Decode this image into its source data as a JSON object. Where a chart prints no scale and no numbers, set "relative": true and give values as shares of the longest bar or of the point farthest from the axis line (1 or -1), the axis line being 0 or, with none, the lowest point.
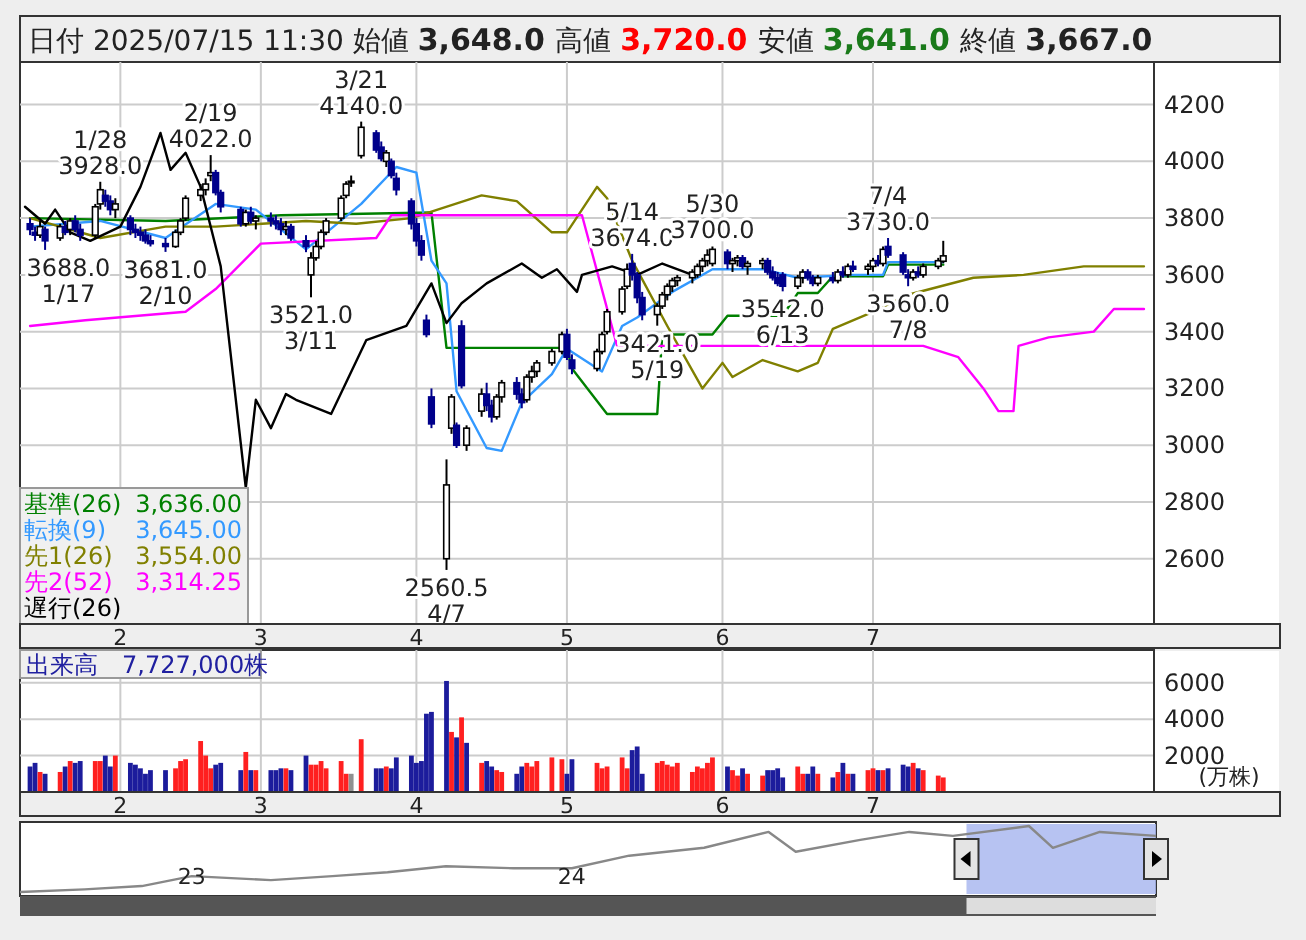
{
  "chart_data": [
    {
      "type": "candlestick",
      "title": "日付 2025/07/15 11:30 始値 3,648.0 高値 3,720.0 安値 3,641.0 終値 3,667.0",
      "x": [
        "2025-01-14",
        "2025-01-15",
        "2025-01-16",
        "2025-01-17",
        "2025-01-20",
        "2025-01-21",
        "2025-01-22",
        "2025-01-23",
        "2025-01-24",
        "2025-01-27",
        "2025-01-28",
        "2025-01-29",
        "2025-01-30",
        "2025-01-31",
        "2025-02-03",
        "2025-02-04",
        "2025-02-05",
        "2025-02-06",
        "2025-02-07",
        "2025-02-10",
        "2025-02-12",
        "2025-02-13",
        "2025-02-14",
        "2025-02-17",
        "2025-02-18",
        "2025-02-19",
        "2025-02-20",
        "2025-02-21",
        "2025-02-25",
        "2025-02-26",
        "2025-02-27",
        "2025-02-28",
        "2025-03-03",
        "2025-03-04",
        "2025-03-05",
        "2025-03-06",
        "2025-03-07",
        "2025-03-10",
        "2025-03-11",
        "2025-03-12",
        "2025-03-13",
        "2025-03-14",
        "2025-03-17",
        "2025-03-18",
        "2025-03-19",
        "2025-03-21",
        "2025-03-24",
        "2025-03-25",
        "2025-03-26",
        "2025-03-27",
        "2025-03-28",
        "2025-03-31",
        "2025-04-01",
        "2025-04-02",
        "2025-04-03",
        "2025-04-04",
        "2025-04-07",
        "2025-04-08",
        "2025-04-09",
        "2025-04-10",
        "2025-04-11",
        "2025-04-14",
        "2025-04-15",
        "2025-04-16",
        "2025-04-17",
        "2025-04-18",
        "2025-04-21",
        "2025-04-22",
        "2025-04-23",
        "2025-04-24",
        "2025-04-25",
        "2025-04-28",
        "2025-04-30",
        "2025-05-01",
        "2025-05-02",
        "2025-05-07",
        "2025-05-08",
        "2025-05-09",
        "2025-05-12",
        "2025-05-13",
        "2025-05-14",
        "2025-05-15",
        "2025-05-16",
        "2025-05-19",
        "2025-05-20",
        "2025-05-21",
        "2025-05-22",
        "2025-05-23",
        "2025-05-26",
        "2025-05-27",
        "2025-05-28",
        "2025-05-29",
        "2025-05-30",
        "2025-06-02",
        "2025-06-03",
        "2025-06-04",
        "2025-06-05",
        "2025-06-06",
        "2025-06-09",
        "2025-06-10",
        "2025-06-11",
        "2025-06-12",
        "2025-06-13",
        "2025-06-16",
        "2025-06-17",
        "2025-06-18",
        "2025-06-19",
        "2025-06-20",
        "2025-06-23",
        "2025-06-24",
        "2025-06-25",
        "2025-06-26",
        "2025-06-27",
        "2025-06-30",
        "2025-07-01",
        "2025-07-02",
        "2025-07-03",
        "2025-07-04",
        "2025-07-07",
        "2025-07-08",
        "2025-07-09",
        "2025-07-10",
        "2025-07-11",
        "2025-07-14",
        "2025-07-15"
      ],
      "ohlc": [
        [
          3780,
          3800,
          3740,
          3760
        ],
        [
          3750,
          3770,
          3720,
          3740
        ],
        [
          3740,
          3790,
          3730,
          3770
        ],
        [
          3760,
          3770,
          3688,
          3720
        ],
        [
          3730,
          3780,
          3720,
          3770
        ],
        [
          3770,
          3790,
          3740,
          3750
        ],
        [
          3760,
          3800,
          3740,
          3790
        ],
        [
          3790,
          3810,
          3750,
          3760
        ],
        [
          3760,
          3780,
          3720,
          3740
        ],
        [
          3740,
          3850,
          3730,
          3840
        ],
        [
          3850,
          3928,
          3830,
          3900
        ],
        [
          3880,
          3900,
          3840,
          3860
        ],
        [
          3860,
          3880,
          3810,
          3830
        ],
        [
          3830,
          3870,
          3800,
          3850
        ],
        [
          3800,
          3810,
          3740,
          3760
        ],
        [
          3760,
          3780,
          3730,
          3750
        ],
        [
          3750,
          3770,
          3720,
          3740
        ],
        [
          3740,
          3760,
          3710,
          3720
        ],
        [
          3720,
          3740,
          3700,
          3710
        ],
        [
          3710,
          3730,
          3681,
          3700
        ],
        [
          3700,
          3760,
          3695,
          3750
        ],
        [
          3750,
          3800,
          3740,
          3790
        ],
        [
          3800,
          3880,
          3790,
          3870
        ],
        [
          3880,
          3920,
          3860,
          3900
        ],
        [
          3900,
          3940,
          3880,
          3920
        ],
        [
          3950,
          4022,
          3930,
          3960
        ],
        [
          3960,
          3970,
          3880,
          3890
        ],
        [
          3890,
          3900,
          3820,
          3840
        ],
        [
          3830,
          3840,
          3770,
          3780
        ],
        [
          3780,
          3830,
          3770,
          3820
        ],
        [
          3820,
          3840,
          3780,
          3790
        ],
        [
          3790,
          3810,
          3760,
          3800
        ],
        [
          3800,
          3820,
          3770,
          3790
        ],
        [
          3790,
          3810,
          3760,
          3780
        ],
        [
          3780,
          3800,
          3740,
          3760
        ],
        [
          3760,
          3790,
          3740,
          3770
        ],
        [
          3770,
          3780,
          3720,
          3730
        ],
        [
          3720,
          3740,
          3680,
          3700
        ],
        [
          3600,
          3680,
          3521,
          3660
        ],
        [
          3660,
          3720,
          3650,
          3700
        ],
        [
          3700,
          3760,
          3690,
          3750
        ],
        [
          3750,
          3800,
          3740,
          3790
        ],
        [
          3800,
          3880,
          3790,
          3870
        ],
        [
          3880,
          3930,
          3870,
          3920
        ],
        [
          3930,
          3950,
          3910,
          3930
        ],
        [
          4020,
          4140,
          4010,
          4120
        ],
        [
          4100,
          4110,
          4030,
          4040
        ],
        [
          4050,
          4070,
          4000,
          4010
        ],
        [
          4000,
          4040,
          3980,
          4030
        ],
        [
          4000,
          4010,
          3940,
          3950
        ],
        [
          3940,
          3960,
          3880,
          3900
        ],
        [
          3860,
          3870,
          3760,
          3780
        ],
        [
          3780,
          3800,
          3700,
          3720
        ],
        [
          3720,
          3740,
          3650,
          3670
        ],
        [
          3440,
          3460,
          3380,
          3390
        ],
        [
          3170,
          3200,
          3060,
          3075
        ],
        [
          2600,
          2950,
          2560.5,
          2860
        ],
        [
          3060,
          3180,
          3040,
          3170
        ],
        [
          3070,
          3080,
          2990,
          3000
        ],
        [
          3420,
          3440,
          3200,
          3210
        ],
        [
          3000,
          3070,
          2980,
          3060
        ],
        [
          3120,
          3200,
          3100,
          3180
        ],
        [
          3180,
          3220,
          3120,
          3140
        ],
        [
          3140,
          3160,
          3080,
          3100
        ],
        [
          3100,
          3180,
          3090,
          3170
        ],
        [
          3170,
          3230,
          3150,
          3220
        ],
        [
          3220,
          3240,
          3160,
          3180
        ],
        [
          3180,
          3200,
          3130,
          3150
        ],
        [
          3160,
          3250,
          3150,
          3240
        ],
        [
          3240,
          3280,
          3220,
          3260
        ],
        [
          3260,
          3300,
          3240,
          3290
        ],
        [
          3290,
          3340,
          3280,
          3330
        ],
        [
          3330,
          3400,
          3320,
          3390
        ],
        [
          3390,
          3410,
          3300,
          3310
        ],
        [
          3300,
          3320,
          3250,
          3270
        ],
        [
          3270,
          3340,
          3260,
          3330
        ],
        [
          3330,
          3400,
          3320,
          3390
        ],
        [
          3400,
          3480,
          3390,
          3470
        ],
        [
          3470,
          3560,
          3460,
          3550
        ],
        [
          3560,
          3640,
          3550,
          3620
        ],
        [
          3640,
          3674,
          3580,
          3600
        ],
        [
          3600,
          3610,
          3500,
          3520
        ],
        [
          3520,
          3540,
          3440,
          3460
        ],
        [
          3460,
          3500,
          3421,
          3490
        ],
        [
          3490,
          3540,
          3480,
          3530
        ],
        [
          3530,
          3570,
          3510,
          3560
        ],
        [
          3560,
          3590,
          3540,
          3580
        ],
        [
          3580,
          3600,
          3560,
          3590
        ],
        [
          3590,
          3620,
          3570,
          3610
        ],
        [
          3600,
          3640,
          3590,
          3630
        ],
        [
          3630,
          3660,
          3610,
          3650
        ],
        [
          3650,
          3690,
          3630,
          3670
        ],
        [
          3640,
          3700,
          3630,
          3690
        ],
        [
          3680,
          3690,
          3620,
          3640
        ],
        [
          3640,
          3660,
          3610,
          3650
        ],
        [
          3650,
          3670,
          3630,
          3660
        ],
        [
          3660,
          3670,
          3620,
          3630
        ],
        [
          3630,
          3650,
          3600,
          3640
        ],
        [
          3640,
          3660,
          3620,
          3650
        ],
        [
          3650,
          3660,
          3600,
          3610
        ],
        [
          3610,
          3630,
          3580,
          3590
        ],
        [
          3590,
          3610,
          3560,
          3570
        ],
        [
          3600,
          3610,
          3542,
          3560
        ],
        [
          3560,
          3600,
          3550,
          3590
        ],
        [
          3590,
          3620,
          3570,
          3610
        ],
        [
          3610,
          3620,
          3580,
          3590
        ],
        [
          3590,
          3600,
          3560,
          3570
        ],
        [
          3570,
          3600,
          3560,
          3590
        ],
        [
          3590,
          3610,
          3570,
          3580
        ],
        [
          3580,
          3620,
          3570,
          3610
        ],
        [
          3610,
          3630,
          3590,
          3600
        ],
        [
          3600,
          3640,
          3590,
          3630
        ],
        [
          3630,
          3650,
          3610,
          3620
        ],
        [
          3620,
          3640,
          3600,
          3630
        ],
        [
          3630,
          3660,
          3610,
          3650
        ],
        [
          3650,
          3670,
          3630,
          3640
        ],
        [
          3640,
          3700,
          3630,
          3690
        ],
        [
          3700,
          3730,
          3660,
          3670
        ],
        [
          3670,
          3680,
          3600,
          3610
        ],
        [
          3600,
          3620,
          3560,
          3590
        ],
        [
          3590,
          3620,
          3580,
          3610
        ],
        [
          3610,
          3630,
          3590,
          3600
        ],
        [
          3600,
          3640,
          3590,
          3630
        ],
        [
          3630,
          3660,
          3620,
          3650
        ],
        [
          3648,
          3720,
          3641,
          3667
        ]
      ],
      "series": [
        {
          "type": "line",
          "name": "基準(26)",
          "color": "#008000",
          "x": [
            "2025-01-14",
            "2025-02-10",
            "2025-03-05",
            "2025-04-04",
            "2025-04-07",
            "2025-05-01",
            "2025-05-02",
            "2025-05-09",
            "2025-05-19",
            "2025-05-20",
            "2025-05-30",
            "2025-06-02",
            "2025-06-13",
            "2025-06-16",
            "2025-06-20",
            "2025-06-23",
            "2025-07-03",
            "2025-07-04",
            "2025-07-15"
          ],
          "values": [
            3800,
            3790,
            3810,
            3820,
            3343,
            3343,
            3270,
            3110,
            3110,
            3390,
            3390,
            3456,
            3456,
            3536,
            3536,
            3595,
            3595,
            3636,
            3636
          ]
        },
        {
          "type": "line",
          "name": "転換(9)",
          "color": "#3399ff",
          "x": [
            "2025-01-14",
            "2025-01-28",
            "2025-02-10",
            "2025-02-20",
            "2025-02-28",
            "2025-03-10",
            "2025-03-21",
            "2025-03-28",
            "2025-04-01",
            "2025-04-04",
            "2025-04-07",
            "2025-04-09",
            "2025-04-15",
            "2025-04-18",
            "2025-04-22",
            "2025-04-28",
            "2025-05-01",
            "2025-05-08",
            "2025-05-12",
            "2025-05-15",
            "2025-05-22",
            "2025-05-30",
            "2025-06-09",
            "2025-06-16",
            "2025-06-27",
            "2025-07-03",
            "2025-07-04",
            "2025-07-15"
          ],
          "values": [
            3770,
            3790,
            3730,
            3850,
            3830,
            3690,
            3850,
            3980,
            3960,
            3650,
            3570,
            3190,
            2990,
            2980,
            3150,
            3250,
            3340,
            3260,
            3420,
            3450,
            3540,
            3620,
            3620,
            3590,
            3600,
            3600,
            3645,
            3645
          ]
        },
        {
          "type": "line",
          "name": "先1(26)",
          "color": "#808000",
          "x": [
            "2025-01-14",
            "2025-01-28",
            "2025-02-10",
            "2025-02-20",
            "2025-03-10",
            "2025-03-20",
            "2025-03-31",
            "2025-04-14",
            "2025-04-21",
            "2025-04-28",
            "2025-05-01",
            "2025-05-07",
            "2025-05-09",
            "2025-05-14",
            "2025-05-21",
            "2025-05-28",
            "2025-06-01",
            "2025-06-03",
            "2025-06-09",
            "2025-06-16",
            "2025-06-20",
            "2025-06-23",
            "2025-07-01",
            "2025-07-08",
            "2025-07-21",
            "2025-07-31",
            "2025-08-12",
            "2025-08-24"
          ],
          "values": [
            3800,
            3730,
            3770,
            3770,
            3790,
            3780,
            3800,
            3880,
            3860,
            3750,
            3750,
            3910,
            3870,
            3650,
            3420,
            3200,
            3290,
            3240,
            3300,
            3260,
            3290,
            3410,
            3470,
            3530,
            3590,
            3600,
            3630,
            3630
          ]
        },
        {
          "type": "line",
          "name": "先2(52)",
          "color": "#ff00ff",
          "x": [
            "2025-01-14",
            "2025-01-25",
            "2025-02-14",
            "2025-02-20",
            "2025-03-01",
            "2025-03-24",
            "2025-03-27",
            "2025-05-04",
            "2025-05-11",
            "2025-07-11",
            "2025-07-18",
            "2025-07-23",
            "2025-07-26",
            "2025-07-29",
            "2025-07-30",
            "2025-08-05",
            "2025-08-14",
            "2025-08-18",
            "2025-08-24"
          ],
          "values": [
            3420,
            3440,
            3470,
            3550,
            3710,
            3730,
            3810,
            3810,
            3350,
            3350,
            3310,
            3200,
            3120,
            3120,
            3350,
            3380,
            3400,
            3480,
            3480
          ]
        },
        {
          "type": "line",
          "name": "遅行(26)",
          "color": "#000000",
          "x": [
            "2025-01-13",
            "2025-01-17",
            "2025-01-19",
            "2025-01-22",
            "2025-01-26",
            "2025-02-01",
            "2025-02-05",
            "2025-02-09",
            "2025-02-11",
            "2025-02-14",
            "2025-02-17",
            "2025-02-21",
            "2025-02-26",
            "2025-02-28",
            "2025-03-03",
            "2025-03-06",
            "2025-03-08",
            "2025-03-15",
            "2025-03-22",
            "2025-03-30",
            "2025-04-04",
            "2025-04-07",
            "2025-04-10",
            "2025-04-15",
            "2025-04-22",
            "2025-04-26",
            "2025-04-29",
            "2025-05-03",
            "2025-05-04",
            "2025-05-10",
            "2025-05-15",
            "2025-05-20",
            "2025-05-26"
          ],
          "values": [
            3840,
            3780,
            3830,
            3750,
            3720,
            3770,
            3910,
            4100,
            3970,
            4030,
            3910,
            3630,
            2850,
            3160,
            3060,
            3180,
            3160,
            3110,
            3370,
            3420,
            3570,
            3430,
            3500,
            3570,
            3640,
            3590,
            3620,
            3540,
            3600,
            3630,
            3600,
            3640,
            3600
          ]
        }
      ],
      "annotations": [
        "3,636.00",
        "3,645.00",
        "3,554.00",
        "3,314.25",
        {
          "text": "3688.0\n1/17",
          "x": "2025-01-17",
          "y": 3688
        },
        {
          "text": "1/28\n3928.0",
          "x": "2025-01-28",
          "y": 3928
        },
        {
          "text": "3681.0\n2/10",
          "x": "2025-02-10",
          "y": 3681
        },
        {
          "text": "2/19\n4022.0",
          "x": "2025-02-19",
          "y": 4022
        },
        {
          "text": "3521.0\n3/11",
          "x": "2025-03-11",
          "y": 3521
        },
        {
          "text": "3/21\n4140.0",
          "x": "2025-03-21",
          "y": 4140
        },
        {
          "text": "2560.5\n4/7",
          "x": "2025-04-07",
          "y": 2560.5
        },
        {
          "text": "5/14\n3674.0",
          "x": "2025-05-14",
          "y": 3674
        },
        {
          "text": "3421.0\n5/19",
          "x": "2025-05-19",
          "y": 3421
        },
        {
          "text": "5/30\n3700.0",
          "x": "2025-05-30",
          "y": 3700
        },
        {
          "text": "3542.0\n6/13",
          "x": "2025-06-13",
          "y": 3542
        },
        {
          "text": "7/4\n3730.0",
          "x": "2025-07-04",
          "y": 3730
        },
        {
          "text": "3560.0\n7/8",
          "x": "2025-07-08",
          "y": 3560
        }
      ],
      "legend": "bottom left",
      "grid": true,
      "xlim": [
        "2025-01-12",
        "2025-08-26"
      ],
      "xticks": [
        {
          "value": "2025-02-01",
          "label": "2"
        },
        {
          "value": "2025-03-01",
          "label": "3"
        },
        {
          "value": "2025-04-01",
          "label": "4"
        },
        {
          "value": "2025-05-01",
          "label": "5"
        },
        {
          "value": "2025-06-01",
          "label": "6"
        },
        {
          "value": "2025-07-01",
          "label": "7"
        }
      ],
      "ylim": [
        2370,
        4350
      ],
      "yticks": [
        2600,
        2800,
        3000,
        3200,
        3400,
        3600,
        3800,
        4000,
        4200
      ]
    },
    {
      "type": "bar",
      "title": "出来高　7,727,000株",
      "ylabel": "(万株)",
      "x": [
        "2025-01-14",
        "2025-01-15",
        "2025-01-16",
        "2025-01-17",
        "2025-01-20",
        "2025-01-21",
        "2025-01-22",
        "2025-01-23",
        "2025-01-24",
        "2025-01-27",
        "2025-01-28",
        "2025-01-29",
        "2025-01-30",
        "2025-01-31",
        "2025-02-03",
        "2025-02-04",
        "2025-02-05",
        "2025-02-06",
        "2025-02-07",
        "2025-02-10",
        "2025-02-12",
        "2025-02-13",
        "2025-02-14",
        "2025-02-17",
        "2025-02-18",
        "2025-02-19",
        "2025-02-20",
        "2025-02-21",
        "2025-02-25",
        "2025-02-26",
        "2025-02-27",
        "2025-02-28",
        "2025-03-03",
        "2025-03-04",
        "2025-03-05",
        "2025-03-06",
        "2025-03-07",
        "2025-03-10",
        "2025-03-11",
        "2025-03-12",
        "2025-03-13",
        "2025-03-14",
        "2025-03-17",
        "2025-03-18",
        "2025-03-19",
        "2025-03-21",
        "2025-03-24",
        "2025-03-25",
        "2025-03-26",
        "2025-03-27",
        "2025-03-28",
        "2025-03-31",
        "2025-04-01",
        "2025-04-02",
        "2025-04-03",
        "2025-04-04",
        "2025-04-07",
        "2025-04-08",
        "2025-04-09",
        "2025-04-10",
        "2025-04-11",
        "2025-04-14",
        "2025-04-15",
        "2025-04-16",
        "2025-04-17",
        "2025-04-18",
        "2025-04-21",
        "2025-04-22",
        "2025-04-23",
        "2025-04-24",
        "2025-04-25",
        "2025-04-28",
        "2025-04-30",
        "2025-05-01",
        "2025-05-02",
        "2025-05-07",
        "2025-05-08",
        "2025-05-09",
        "2025-05-12",
        "2025-05-13",
        "2025-05-14",
        "2025-05-15",
        "2025-05-16",
        "2025-05-19",
        "2025-05-20",
        "2025-05-21",
        "2025-05-22",
        "2025-05-23",
        "2025-05-26",
        "2025-05-27",
        "2025-05-28",
        "2025-05-29",
        "2025-05-30",
        "2025-06-02",
        "2025-06-03",
        "2025-06-04",
        "2025-06-05",
        "2025-06-06",
        "2025-06-09",
        "2025-06-10",
        "2025-06-11",
        "2025-06-12",
        "2025-06-13",
        "2025-06-16",
        "2025-06-17",
        "2025-06-18",
        "2025-06-19",
        "2025-06-20",
        "2025-06-23",
        "2025-06-24",
        "2025-06-25",
        "2025-06-26",
        "2025-06-27",
        "2025-06-30",
        "2025-07-01",
        "2025-07-02",
        "2025-07-03",
        "2025-07-04",
        "2025-07-07",
        "2025-07-08",
        "2025-07-09",
        "2025-07-10",
        "2025-07-11",
        "2025-07-14",
        "2025-07-15"
      ],
      "values": [
        1400,
        1600,
        1100,
        1000,
        1100,
        1400,
        1700,
        1600,
        1700,
        1700,
        1700,
        2000,
        1400,
        2000,
        1600,
        1500,
        1300,
        1000,
        1200,
        1200,
        1300,
        1700,
        1800,
        2800,
        2000,
        1300,
        1500,
        1600,
        1200,
        2200,
        1200,
        1200,
        1200,
        1200,
        1300,
        1300,
        1200,
        2000,
        1500,
        1500,
        1700,
        1300,
        1700,
        1000,
        1000,
        2900,
        1300,
        1300,
        1400,
        1300,
        1900,
        2000,
        1600,
        1700,
        4300,
        4400,
        6100,
        3300,
        3000,
        4100,
        2700,
        1600,
        1700,
        1400,
        1200,
        1100,
        1000,
        1400,
        1600,
        1400,
        1700,
        1900,
        1800,
        1000,
        1800,
        1600,
        1300,
        1400,
        1900,
        1300,
        2300,
        2500,
        1000,
        1600,
        1700,
        1500,
        1400,
        1600,
        1100,
        1400,
        1300,
        1600,
        1900,
        1400,
        1200,
        900,
        1300,
        1000,
        900,
        1200,
        1200,
        1300,
        800,
        1400,
        1000,
        1000,
        1400,
        1000,
        800,
        1100,
        1600,
        1000,
        1000,
        1200,
        1300,
        1200,
        1200,
        1300,
        1500,
        1400,
        1600,
        1300,
        1200,
        900,
        800
      ],
      "colors": [
        "#1c1c9c",
        "#1c1c9c",
        "#ff2020",
        "#1c1c9c",
        "#ff2020",
        "#1c1c9c",
        "#ff2020",
        "#1c1c9c",
        "#1c1c9c",
        "#ff2020",
        "#ff2020",
        "#1c1c9c",
        "#1c1c9c",
        "#ff2020",
        "#1c1c9c",
        "#1c1c9c",
        "#1c1c9c",
        "#1c1c9c",
        "#1c1c9c",
        "#1c1c9c",
        "#ff2020",
        "#ff2020",
        "#ff2020",
        "#ff2020",
        "#ff2020",
        "#ff2020",
        "#1c1c9c",
        "#1c1c9c",
        "#1c1c9c",
        "#ff2020",
        "#1c1c9c",
        "#ff2020",
        "#1c1c9c",
        "#1c1c9c",
        "#1c1c9c",
        "#ff2020",
        "#1c1c9c",
        "#1c1c9c",
        "#ff2020",
        "#ff2020",
        "#ff2020",
        "#ff2020",
        "#ff2020",
        "#ff2020",
        "#909090",
        "#ff2020",
        "#1c1c9c",
        "#1c1c9c",
        "#ff2020",
        "#1c1c9c",
        "#1c1c9c",
        "#1c1c9c",
        "#1c1c9c",
        "#1c1c9c",
        "#1c1c9c",
        "#1c1c9c",
        "#1c1c9c",
        "#ff2020",
        "#1c1c9c",
        "#ff2020",
        "#1c1c9c",
        "#ff2020",
        "#1c1c9c",
        "#1c1c9c",
        "#ff2020",
        "#ff2020",
        "#1c1c9c",
        "#1c1c9c",
        "#ff2020",
        "#ff2020",
        "#ff2020",
        "#ff2020",
        "#ff2020",
        "#1c1c9c",
        "#1c1c9c",
        "#ff2020",
        "#ff2020",
        "#ff2020",
        "#ff2020",
        "#ff2020",
        "#1c1c9c",
        "#1c1c9c",
        "#1c1c9c",
        "#ff2020",
        "#ff2020",
        "#ff2020",
        "#ff2020",
        "#ff2020",
        "#ff2020",
        "#ff2020",
        "#ff2020",
        "#ff2020",
        "#ff2020",
        "#1c1c9c",
        "#ff2020",
        "#ff2020",
        "#1c1c9c",
        "#ff2020",
        "#ff2020",
        "#1c1c9c",
        "#1c1c9c",
        "#1c1c9c",
        "#1c1c9c",
        "#ff2020",
        "#ff2020",
        "#1c1c9c",
        "#1c1c9c",
        "#ff2020",
        "#1c1c9c",
        "#ff2020",
        "#1c1c9c",
        "#ff2020",
        "#1c1c9c",
        "#ff2020",
        "#ff2020",
        "#1c1c9c",
        "#ff2020",
        "#1c1c9c",
        "#1c1c9c",
        "#1c1c9c",
        "#ff2020",
        "#1c1c9c",
        "#ff2020",
        "#ff2020",
        "#ff2020"
      ],
      "grid": true,
      "xlim": [
        "2025-01-12",
        "2025-08-26"
      ],
      "xticks": [
        {
          "value": "2025-02-01",
          "label": "2"
        },
        {
          "value": "2025-03-01",
          "label": "3"
        },
        {
          "value": "2025-04-01",
          "label": "4"
        },
        {
          "value": "2025-05-01",
          "label": "5"
        },
        {
          "value": "2025-06-01",
          "label": "6"
        },
        {
          "value": "2025-07-01",
          "label": "7"
        }
      ],
      "ylim": [
        0,
        7800
      ],
      "yticks": [
        2000,
        4000,
        6000
      ]
    },
    {
      "type": "line",
      "relative": true,
      "color": "#888888",
      "x": [
        "2022-07-20",
        "2022-09-20",
        "2022-11-14",
        "2023-01-01",
        "2023-03-18",
        "2023-05-16",
        "2023-07-08",
        "2023-09-02",
        "2023-11-06",
        "2024-01-01",
        "2024-02-25",
        "2024-05-07",
        "2024-07-08",
        "2024-08-03",
        "2024-10-04",
        "2024-11-20",
        "2025-01-01",
        "2025-03-15",
        "2025-04-07",
        "2025-05-22",
        "2025-07-15"
      ],
      "values": [
        0,
        0.04,
        0.09,
        0.24,
        0.18,
        0.24,
        0.3,
        0.39,
        0.36,
        0.36,
        0.55,
        0.67,
        0.91,
        0.61,
        0.79,
        0.91,
        0.85,
        1,
        0.67,
        0.91,
        0.85
      ],
      "bands": [
        {
          "axis": "x",
          "from": "2025-01-14",
          "to": "2025-07-15",
          "color": "#aab8f0"
        }
      ],
      "xlim": [
        "2022-07-20",
        "2025-07-15"
      ],
      "xticks": [
        {
          "value": "2023-01-01",
          "label": "23"
        },
        {
          "value": "2024-01-01",
          "label": "24"
        }
      ]
    }
  ]
}
